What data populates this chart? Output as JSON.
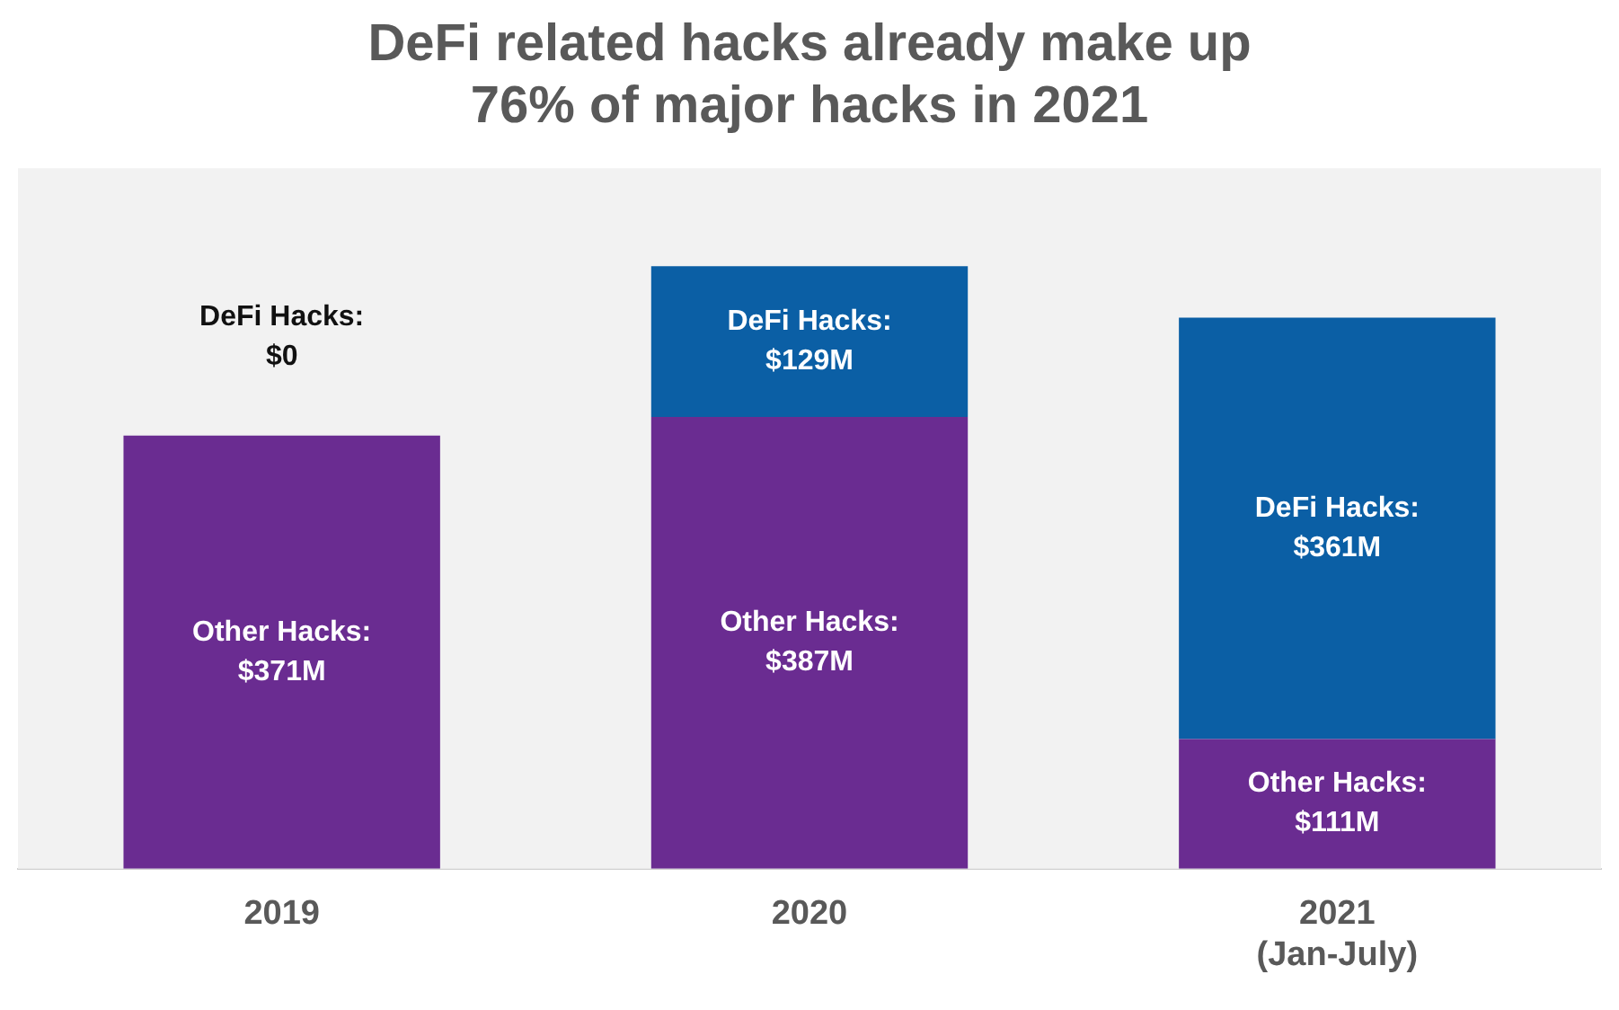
{
  "chart_data": {
    "type": "bar",
    "title": "DeFi related hacks already make up\n76% of major hacks in 2021",
    "categories": [
      "2019",
      "2020",
      "2021\n(Jan-July)"
    ],
    "stacked": true,
    "series": [
      {
        "color": "#6a2c91",
        "values": [
          371,
          387,
          111
        ],
        "value_labels": [
          "Other Hacks:\n$371M",
          "Other Hacks:\n$387M",
          "Other Hacks:\n$111M"
        ]
      },
      {
        "color": "#0b5fa5",
        "values": [
          0,
          129,
          361
        ],
        "value_labels": [
          "DeFi Hacks:\n$0",
          "DeFi Hacks:\n$129M",
          "DeFi Hacks:\n$361M"
        ]
      }
    ],
    "grid": false,
    "legend": false
  }
}
